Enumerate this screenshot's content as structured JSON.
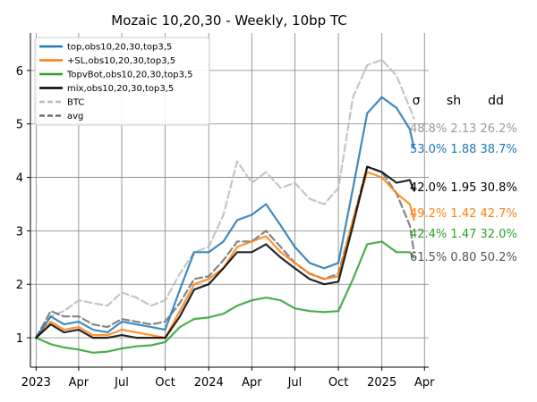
{
  "chart_data": {
    "type": "line",
    "title": "Mozaic 10,20,30 - Weekly, 10bp TC",
    "xlabel": "",
    "ylabel": "",
    "xlim": [
      "2022-12-20",
      "2025-04-10"
    ],
    "ylim": [
      0.45,
      6.7
    ],
    "x_ticks": [
      {
        "date": "2023-01-01",
        "label": "2023"
      },
      {
        "date": "2023-04-01",
        "label": "Apr"
      },
      {
        "date": "2023-07-01",
        "label": "Jul"
      },
      {
        "date": "2023-10-01",
        "label": "Oct"
      },
      {
        "date": "2024-01-01",
        "label": "2024"
      },
      {
        "date": "2024-04-01",
        "label": "Apr"
      },
      {
        "date": "2024-07-01",
        "label": "Jul"
      },
      {
        "date": "2024-10-01",
        "label": "Oct"
      },
      {
        "date": "2025-01-01",
        "label": "2025"
      },
      {
        "date": "2025-04-01",
        "label": "Apr"
      }
    ],
    "y_ticks": [
      1,
      2,
      3,
      4,
      5,
      6
    ],
    "grid": true,
    "legend_position": "upper-left",
    "series": [
      {
        "name": "top,obs10,20,30,top3,5",
        "color": "#1f77b4",
        "dash": "solid",
        "x": [
          "2023-01-01",
          "2023-02-01",
          "2023-03-01",
          "2023-04-01",
          "2023-05-01",
          "2023-06-01",
          "2023-07-01",
          "2023-08-01",
          "2023-09-01",
          "2023-10-01",
          "2023-11-01",
          "2023-12-01",
          "2024-01-01",
          "2024-02-01",
          "2024-03-01",
          "2024-04-01",
          "2024-05-01",
          "2024-06-01",
          "2024-07-01",
          "2024-08-01",
          "2024-09-01",
          "2024-10-01",
          "2024-11-01",
          "2024-12-01",
          "2025-01-01",
          "2025-02-01",
          "2025-03-01",
          "2025-03-10"
        ],
        "y": [
          1.0,
          1.4,
          1.25,
          1.3,
          1.15,
          1.1,
          1.3,
          1.25,
          1.2,
          1.15,
          1.9,
          2.6,
          2.6,
          2.8,
          3.2,
          3.3,
          3.5,
          3.1,
          2.7,
          2.4,
          2.3,
          2.4,
          3.8,
          5.2,
          5.5,
          5.3,
          4.9,
          4.55
        ]
      },
      {
        "name": "+SL,obs10,20,30,top3,5",
        "color": "#ff7f0e",
        "dash": "solid",
        "x": [
          "2023-01-01",
          "2023-02-01",
          "2023-03-01",
          "2023-04-01",
          "2023-05-01",
          "2023-06-01",
          "2023-07-01",
          "2023-08-01",
          "2023-09-01",
          "2023-10-01",
          "2023-11-01",
          "2023-12-01",
          "2024-01-01",
          "2024-02-01",
          "2024-03-01",
          "2024-04-01",
          "2024-05-01",
          "2024-06-01",
          "2024-07-01",
          "2024-08-01",
          "2024-09-01",
          "2024-10-01",
          "2024-11-01",
          "2024-12-01",
          "2025-01-01",
          "2025-02-01",
          "2025-03-01",
          "2025-03-10"
        ],
        "y": [
          1.0,
          1.3,
          1.15,
          1.2,
          1.05,
          1.05,
          1.15,
          1.1,
          1.05,
          1.0,
          1.5,
          2.0,
          2.1,
          2.3,
          2.7,
          2.8,
          2.9,
          2.6,
          2.4,
          2.2,
          2.1,
          2.15,
          3.2,
          4.1,
          4.0,
          3.7,
          3.5,
          3.2
        ]
      },
      {
        "name": "TopvBot,obs10,20,30,top3,5",
        "color": "#2ca02c",
        "dash": "solid",
        "x": [
          "2023-01-01",
          "2023-02-01",
          "2023-03-01",
          "2023-04-01",
          "2023-05-01",
          "2023-06-01",
          "2023-07-01",
          "2023-08-01",
          "2023-09-01",
          "2023-10-01",
          "2023-11-01",
          "2023-12-01",
          "2024-01-01",
          "2024-02-01",
          "2024-03-01",
          "2024-04-01",
          "2024-05-01",
          "2024-06-01",
          "2024-07-01",
          "2024-08-01",
          "2024-09-01",
          "2024-10-01",
          "2024-11-01",
          "2024-12-01",
          "2025-01-01",
          "2025-02-01",
          "2025-03-01",
          "2025-03-10"
        ],
        "y": [
          1.0,
          0.88,
          0.82,
          0.78,
          0.72,
          0.74,
          0.8,
          0.84,
          0.86,
          0.92,
          1.2,
          1.35,
          1.38,
          1.45,
          1.6,
          1.7,
          1.75,
          1.7,
          1.55,
          1.5,
          1.48,
          1.5,
          2.1,
          2.75,
          2.8,
          2.6,
          2.6,
          2.5
        ]
      },
      {
        "name": "mix,obs10,20,30,top3,5",
        "color": "#000000",
        "dash": "solid",
        "x": [
          "2023-01-01",
          "2023-02-01",
          "2023-03-01",
          "2023-04-01",
          "2023-05-01",
          "2023-06-01",
          "2023-07-01",
          "2023-08-01",
          "2023-09-01",
          "2023-10-01",
          "2023-11-01",
          "2023-12-01",
          "2024-01-01",
          "2024-02-01",
          "2024-03-01",
          "2024-04-01",
          "2024-05-01",
          "2024-06-01",
          "2024-07-01",
          "2024-08-01",
          "2024-09-01",
          "2024-10-01",
          "2024-11-01",
          "2024-12-01",
          "2025-01-01",
          "2025-02-01",
          "2025-03-01",
          "2025-03-10"
        ],
        "y": [
          1.0,
          1.25,
          1.1,
          1.15,
          1.0,
          1.0,
          1.05,
          1.0,
          1.0,
          1.0,
          1.4,
          1.9,
          2.0,
          2.3,
          2.6,
          2.6,
          2.75,
          2.5,
          2.3,
          2.1,
          2.0,
          2.05,
          3.1,
          4.2,
          4.1,
          3.9,
          3.95,
          3.75
        ]
      },
      {
        "name": "BTC",
        "color": "#bbbbbb",
        "dash": "dashed",
        "x": [
          "2023-01-01",
          "2023-02-01",
          "2023-03-01",
          "2023-04-01",
          "2023-05-01",
          "2023-06-01",
          "2023-07-01",
          "2023-08-01",
          "2023-09-01",
          "2023-10-01",
          "2023-11-01",
          "2023-12-01",
          "2024-01-01",
          "2024-02-01",
          "2024-03-01",
          "2024-04-01",
          "2024-05-01",
          "2024-06-01",
          "2024-07-01",
          "2024-08-01",
          "2024-09-01",
          "2024-10-01",
          "2024-11-01",
          "2024-12-01",
          "2025-01-01",
          "2025-02-01",
          "2025-03-01",
          "2025-03-10"
        ],
        "y": [
          1.0,
          1.4,
          1.5,
          1.7,
          1.65,
          1.6,
          1.85,
          1.75,
          1.6,
          1.7,
          2.2,
          2.6,
          2.7,
          3.3,
          4.3,
          3.9,
          4.1,
          3.8,
          3.9,
          3.6,
          3.5,
          3.8,
          5.5,
          6.1,
          6.2,
          5.9,
          5.3,
          5.1
        ]
      },
      {
        "name": "avg",
        "color": "#707070",
        "dash": "dashed",
        "x": [
          "2023-01-01",
          "2023-02-01",
          "2023-03-01",
          "2023-04-01",
          "2023-05-01",
          "2023-06-01",
          "2023-07-01",
          "2023-08-01",
          "2023-09-01",
          "2023-10-01",
          "2023-11-01",
          "2023-12-01",
          "2024-01-01",
          "2024-02-01",
          "2024-03-01",
          "2024-04-01",
          "2024-05-01",
          "2024-06-01",
          "2024-07-01",
          "2024-08-01",
          "2024-09-01",
          "2024-10-01",
          "2024-11-01",
          "2024-12-01",
          "2025-01-01",
          "2025-02-01",
          "2025-03-01",
          "2025-03-10"
        ],
        "y": [
          1.0,
          1.5,
          1.4,
          1.4,
          1.25,
          1.2,
          1.35,
          1.3,
          1.25,
          1.3,
          1.65,
          2.1,
          2.15,
          2.45,
          2.8,
          2.8,
          3.0,
          2.7,
          2.4,
          2.2,
          2.1,
          2.2,
          3.2,
          4.2,
          4.1,
          3.7,
          3.1,
          2.6
        ]
      }
    ],
    "stats_headers": [
      "σ",
      "sh",
      "dd"
    ],
    "stats": [
      {
        "series": "BTC",
        "text": "48.8% 2.13 26.2%",
        "color": "#999999"
      },
      {
        "series": "top,obs10,20,30,top3,5",
        "text": "53.0% 1.88 38.7%",
        "color": "#1f77b4"
      },
      {
        "series": "mix,obs10,20,30,top3,5",
        "text": "42.0% 1.95 30.8%",
        "color": "#000000"
      },
      {
        "series": "+SL,obs10,20,30,top3,5",
        "text": "49.2% 1.42 42.7%",
        "color": "#ff7f0e"
      },
      {
        "series": "TopvBot,obs10,20,30,top3,5",
        "text": "42.4% 1.47 32.0%",
        "color": "#2ca02c"
      },
      {
        "series": "avg",
        "text": "61.5% 0.80 50.2%",
        "color": "#555555"
      }
    ]
  }
}
